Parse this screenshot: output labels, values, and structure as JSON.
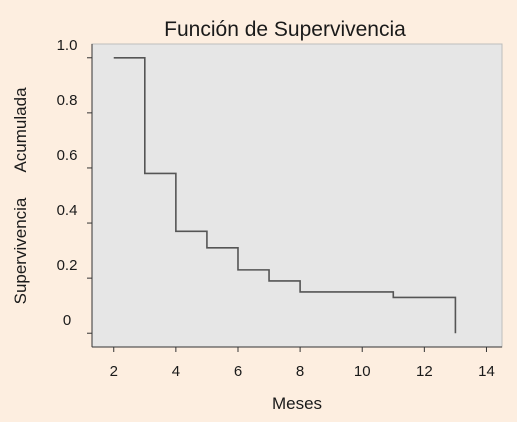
{
  "chart_data": {
    "type": "line",
    "title": "Función de Supervivencia",
    "xlabel": "Meses",
    "ylabel_parts": [
      "Supervivencia",
      "Acumulada"
    ],
    "xlim": [
      1.3,
      14.5
    ],
    "ylim": [
      -0.05,
      1.05
    ],
    "x_ticks": [
      2,
      4,
      6,
      8,
      10,
      12,
      14
    ],
    "y_ticks": [
      {
        "value": 0,
        "label": "0"
      },
      {
        "value": 0.2,
        "label": "0.2"
      },
      {
        "value": 0.4,
        "label": "0.4"
      },
      {
        "value": 0.6,
        "label": "0.6"
      },
      {
        "value": 0.8,
        "label": "0.8"
      },
      {
        "value": 1.0,
        "label": "1.0"
      }
    ],
    "grid": false,
    "series": [
      {
        "step": "post",
        "x": [
          2,
          3,
          4,
          5,
          6,
          7,
          8,
          11,
          13
        ],
        "y": [
          1.0,
          0.58,
          0.37,
          0.31,
          0.23,
          0.19,
          0.15,
          0.13,
          0.0
        ]
      }
    ],
    "colors": {
      "background": "#fdeee0",
      "plot_area": "#e6e6e6",
      "line": "#555555",
      "axis": "#333333"
    }
  }
}
